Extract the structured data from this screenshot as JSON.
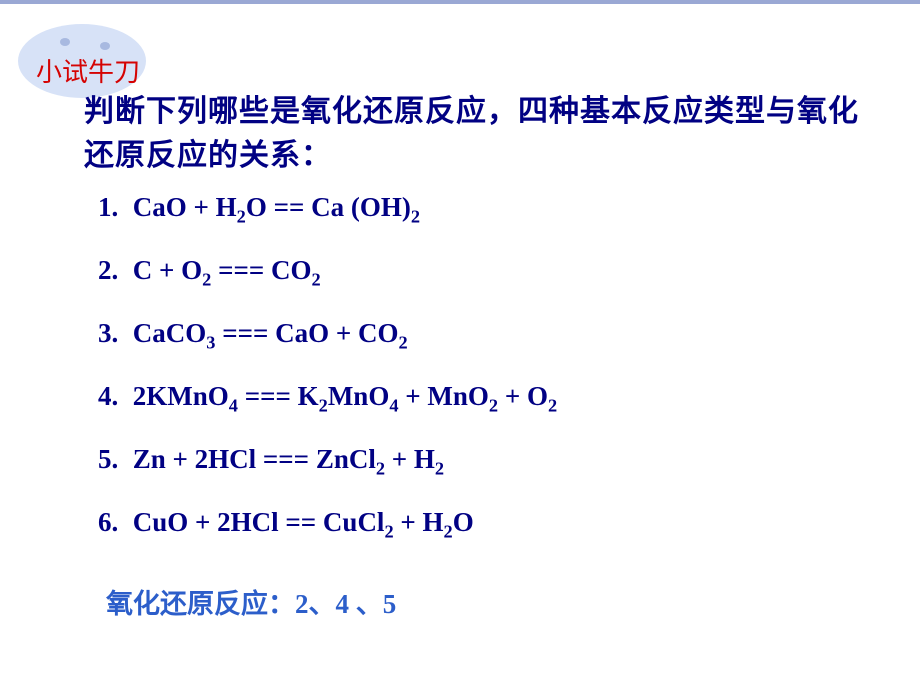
{
  "colors": {
    "background": "#ffffff",
    "top_border": "#9aa8d4",
    "bubble_fill": "#d7e2f7",
    "bubble_dot": "#a8b9e0",
    "bubble_title": "#d50303",
    "body_text": "#010183",
    "answer_text": "#2c5eca"
  },
  "typography": {
    "title_fontsize": 26,
    "intro_fontsize": 30,
    "equation_fontsize": 27,
    "answer_fontsize": 27,
    "intro_weight": "bold",
    "eq_weight": "bold"
  },
  "bubble": {
    "title": "小试牛刀",
    "width": 128,
    "height": 74,
    "dots": 2
  },
  "intro": "判断下列哪些是氧化还原反应，四种基本反应类型与氧化还原反应的关系：",
  "equations": [
    {
      "num": "1.",
      "html": "CaO + H<sub>2</sub>O ==  Ca (OH)<sub>2</sub>"
    },
    {
      "num": "2.",
      "html": "C + O<sub>2</sub> === CO<sub>2</sub>"
    },
    {
      "num": "3.",
      "html": "CaCO<sub>3</sub> === CaO  +  CO<sub>2</sub>"
    },
    {
      "num": "4.",
      "html": "2KMnO<sub>4</sub> === K<sub>2</sub>MnO<sub>4</sub> + MnO<sub>2</sub> + O<sub>2</sub>"
    },
    {
      "num": "5.",
      "html": "Zn + 2HCl === ZnCl<sub>2</sub> + H<sub>2</sub>"
    },
    {
      "num": "6.",
      "html": "CuO + 2HCl == CuCl<sub>2</sub> + H<sub>2</sub>O"
    }
  ],
  "answer": {
    "label": "氧化还原反应：",
    "values": "2、4 、5"
  }
}
